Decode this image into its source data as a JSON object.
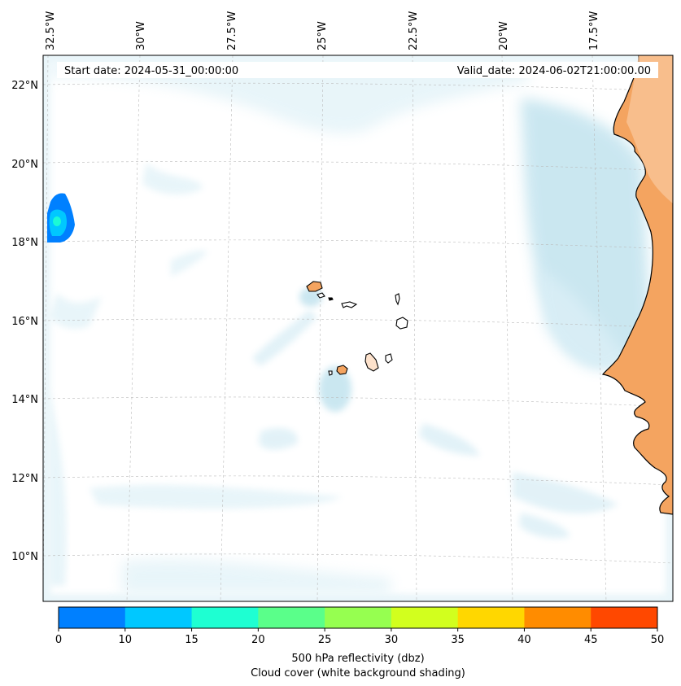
{
  "map": {
    "start_label": "Start date: 2024-05-31_00:00:00",
    "valid_label": "Valid_date: 2024-06-02T21:00:00.00",
    "lon_labels": [
      "32.5°W",
      "30°W",
      "27.5°W",
      "25°W",
      "22.5°W",
      "20°W",
      "17.5°W"
    ],
    "lat_labels": [
      "22°N",
      "20°N",
      "18°N",
      "16°N",
      "14°N",
      "12°N",
      "10°N"
    ],
    "colors": {
      "land": "#f4a460",
      "coast": "#000000",
      "cloud": "#a8d8ea",
      "grid": "#bbbbbb"
    }
  },
  "colorbar": {
    "ticks": [
      "0",
      "10",
      "15",
      "20",
      "25",
      "30",
      "35",
      "40",
      "45",
      "50"
    ],
    "colors": [
      "#0080ff",
      "#00c8ff",
      "#1effd2",
      "#5aff8a",
      "#96ff50",
      "#d2ff1e",
      "#ffd700",
      "#ff8c00",
      "#ff4800"
    ],
    "label_line1": "500 hPa reflectivity (dbz)",
    "label_line2": "Cloud cover (white background shading)"
  }
}
